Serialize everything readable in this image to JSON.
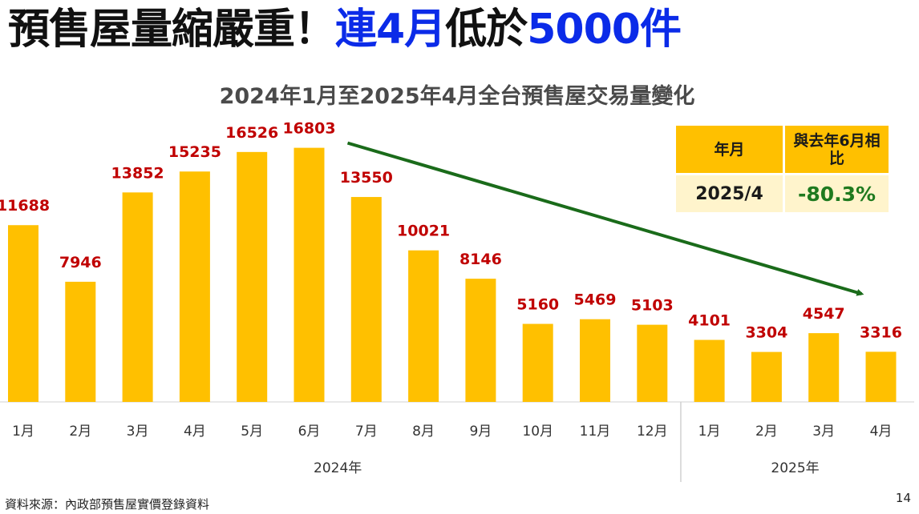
{
  "headline": {
    "part1": "預售屋量縮嚴重！",
    "part2": "連4月",
    "part3": "低於",
    "part4": "5000件"
  },
  "info_table": {
    "header_month": "年月",
    "header_compare": "與去年6月相比",
    "value_month": "2025/4",
    "value_compare": "-80.3%"
  },
  "source": "資料來源：內政部預售屋實價登錄資料",
  "page_number": "14",
  "colors": {
    "bar": "#ffc000",
    "value_label": "#c00000",
    "trend_arrow": "#1a6b1a",
    "headline_blue": "#0b2be8"
  },
  "chart_data": {
    "type": "bar",
    "title": "2024年1月至2025年4月全台預售屋交易量變化",
    "categories": [
      "1月",
      "2月",
      "3月",
      "4月",
      "5月",
      "6月",
      "7月",
      "8月",
      "9月",
      "10月",
      "11月",
      "12月",
      "1月",
      "2月",
      "3月",
      "4月"
    ],
    "groups": [
      {
        "label": "2024年",
        "start": 0,
        "end": 11
      },
      {
        "label": "2025年",
        "start": 12,
        "end": 15
      }
    ],
    "values": [
      11688,
      7946,
      13852,
      15235,
      16526,
      16803,
      13550,
      10021,
      8146,
      5160,
      5469,
      5103,
      4101,
      3304,
      4547,
      3316
    ],
    "ylim": [
      0,
      18000
    ],
    "grid": false,
    "legend": "none",
    "annotations": [
      {
        "type": "trend-arrow",
        "from_index": 5,
        "to_index": 15
      }
    ]
  }
}
